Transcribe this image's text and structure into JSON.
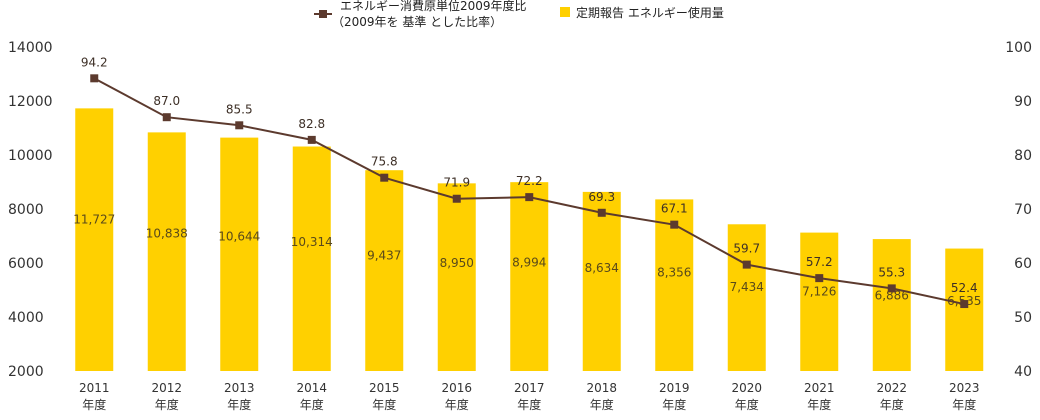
{
  "chart_data": {
    "type": "bar+line",
    "categories": [
      "2011",
      "2012",
      "2013",
      "2014",
      "2015",
      "2016",
      "2017",
      "2018",
      "2019",
      "2020",
      "2021",
      "2022",
      "2023"
    ],
    "category_suffix": "年度",
    "series": [
      {
        "name": "定期報告 エネルギー使用量",
        "type": "bar",
        "axis": "left",
        "color": "#FFD000",
        "values": [
          11727,
          10838,
          10644,
          10314,
          9437,
          8950,
          8994,
          8634,
          8356,
          7434,
          7126,
          6886,
          6535
        ],
        "labels": [
          "11,727",
          "10,838",
          "10,644",
          "10,314",
          "9,437",
          "8,950",
          "8,994",
          "8,634",
          "8,356",
          "7,434",
          "7,126",
          "6,886",
          "6,535"
        ]
      },
      {
        "name_line1": "エネルギー消費原単位2009年度比",
        "name_line2": "（2009年を 基準 とした比率）",
        "type": "line",
        "axis": "right",
        "color": "#5C3A2E",
        "values": [
          94.2,
          87.0,
          85.5,
          82.8,
          75.8,
          71.9,
          72.2,
          69.3,
          67.1,
          59.7,
          57.2,
          55.3,
          52.4
        ],
        "labels": [
          "94.2",
          "87.0",
          "85.5",
          "82.8",
          "75.8",
          "71.9",
          "72.2",
          "69.3",
          "67.1",
          "59.7",
          "57.2",
          "55.3",
          "52.4"
        ]
      }
    ],
    "y_left": {
      "min": 2000,
      "max": 14000,
      "ticks": [
        "2000",
        "4000",
        "6000",
        "8000",
        "10000",
        "12000",
        "14000"
      ]
    },
    "y_right": {
      "min": 40,
      "max": 100,
      "ticks": [
        "40",
        "50",
        "60",
        "70",
        "80",
        "90",
        "100"
      ]
    },
    "legend_placement": "top-center",
    "grid": false
  }
}
